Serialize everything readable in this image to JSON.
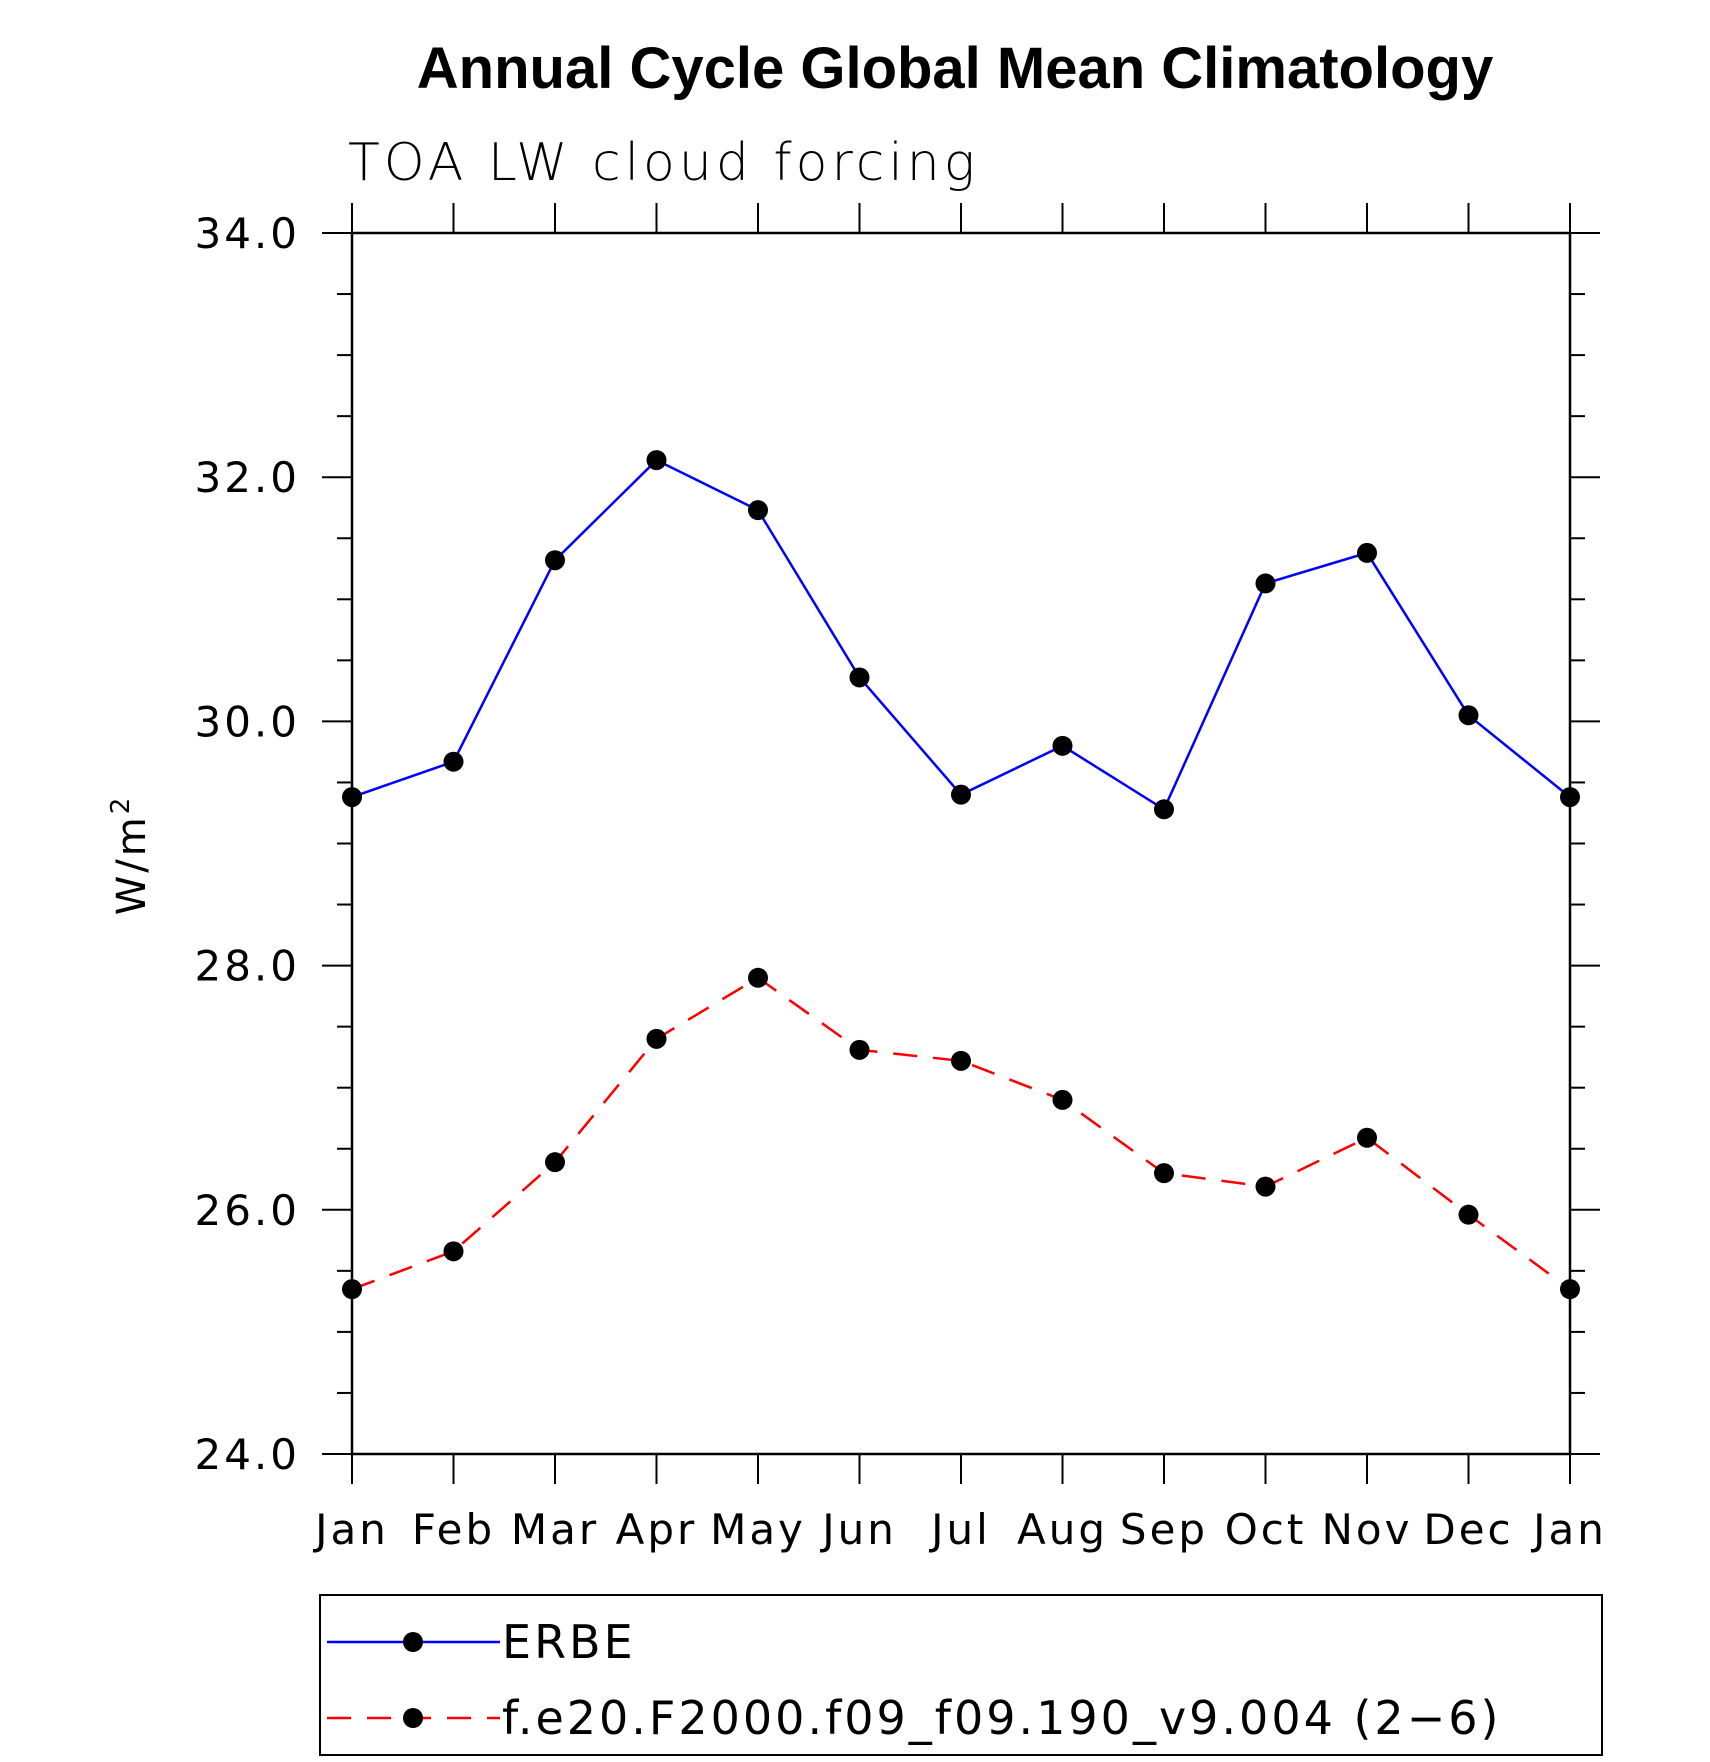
{
  "chart_data": {
    "type": "line",
    "title": "Annual Cycle Global Mean Climatology",
    "subtitle": "TOA LW cloud forcing",
    "ylabel": "W/m",
    "ylabel_sup": "2",
    "xlabel": "",
    "categories": [
      "Jan",
      "Feb",
      "Mar",
      "Apr",
      "May",
      "Jun",
      "Jul",
      "Aug",
      "Sep",
      "Oct",
      "Nov",
      "Dec",
      "Jan"
    ],
    "ylim": [
      24.0,
      34.0
    ],
    "y_ticks": [
      "24.0",
      "26.0",
      "28.0",
      "30.0",
      "32.0",
      "34.0"
    ],
    "y_minor_step": 0.5,
    "grid": false,
    "legend_position": "bottom",
    "series": [
      {
        "name": "ERBE",
        "color": "#0000ff",
        "dash": "solid",
        "values": [
          29.38,
          29.67,
          31.32,
          32.14,
          31.73,
          30.36,
          29.4,
          29.8,
          29.28,
          31.13,
          31.38,
          30.05,
          29.38
        ]
      },
      {
        "name": "f.e20.F2000.f09_f09.190_v9.004 (2−6)",
        "color": "#ff0000",
        "dash": "dashed",
        "values": [
          25.35,
          25.66,
          26.39,
          27.4,
          27.9,
          27.31,
          27.22,
          26.9,
          26.3,
          26.19,
          26.59,
          25.96,
          25.35
        ]
      }
    ]
  }
}
